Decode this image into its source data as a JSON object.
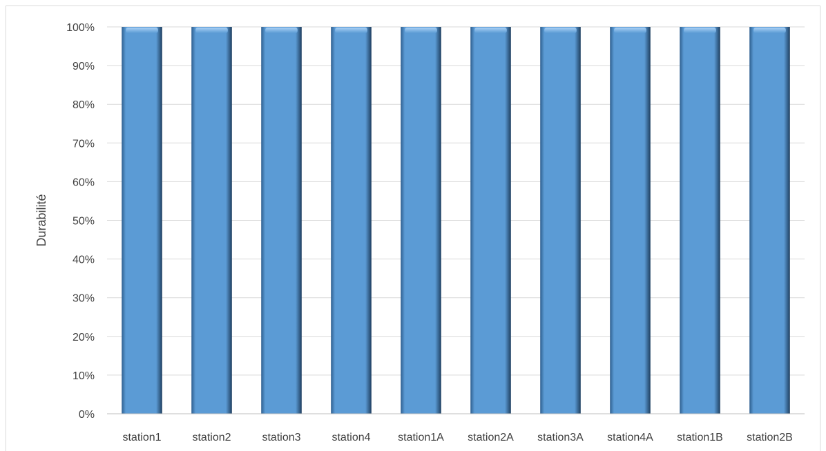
{
  "chart_data": {
    "type": "bar",
    "title": "",
    "xlabel": "",
    "ylabel": "Durabilité",
    "categories": [
      "station1",
      "station2",
      "station3",
      "station4",
      "station1A",
      "station2A",
      "station3A",
      "station4A",
      "station1B",
      "station2B"
    ],
    "values": [
      100,
      100,
      100,
      100,
      100,
      100,
      100,
      100,
      100,
      100
    ],
    "ylim": [
      0,
      100
    ],
    "yticks": [
      0,
      10,
      20,
      30,
      40,
      50,
      60,
      70,
      80,
      90,
      100
    ],
    "ytick_labels": [
      "0%",
      "10%",
      "20%",
      "30%",
      "40%",
      "50%",
      "60%",
      "70%",
      "80%",
      "90%",
      "100%"
    ],
    "grid": true,
    "legend": "none",
    "bar_color": "#5b9bd5",
    "grid_color": "#d9d9d9"
  }
}
